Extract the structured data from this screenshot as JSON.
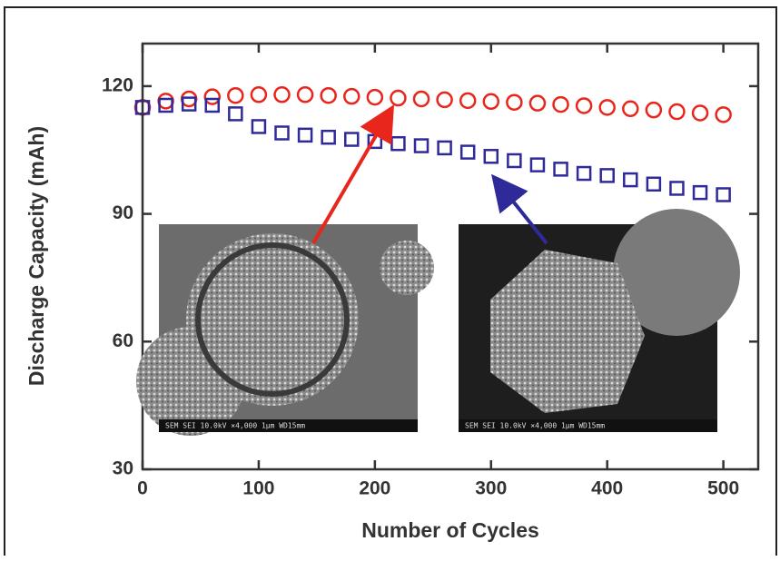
{
  "chart_data": {
    "type": "scatter",
    "xlabel": "Number of Cycles",
    "ylabel": "Discharge Capacity (mAh)",
    "x": [
      0,
      20,
      40,
      60,
      80,
      100,
      120,
      140,
      160,
      180,
      200,
      220,
      240,
      260,
      280,
      300,
      320,
      340,
      360,
      380,
      400,
      420,
      440,
      460,
      480,
      500
    ],
    "series": [
      {
        "color": "#e8261c",
        "marker": "circle",
        "values": [
          115,
          116.5,
          117,
          117.5,
          117.8,
          118,
          118,
          118,
          117.8,
          117.6,
          117.4,
          117.2,
          117,
          116.8,
          116.6,
          116.4,
          116.2,
          116,
          115.7,
          115.4,
          115,
          114.7,
          114.4,
          114,
          113.7,
          113.3
        ]
      },
      {
        "color": "#2e2a9a",
        "marker": "square",
        "values": [
          115,
          115.5,
          115.8,
          115.5,
          113.5,
          110.5,
          109,
          108.5,
          108,
          107.5,
          107,
          106.5,
          106,
          105.5,
          104.5,
          103.5,
          102.5,
          101.5,
          100.5,
          99.5,
          99,
          98,
          97,
          96,
          95,
          94.5
        ]
      }
    ],
    "xlim": [
      0,
      530
    ],
    "xticks": [
      0,
      100,
      200,
      300,
      400,
      500
    ],
    "ylim": [
      30,
      130
    ],
    "yticks": [
      30,
      60,
      90,
      120
    ]
  },
  "insets": [
    {
      "caption": "SEM SEI 10.0kV ×4,000 1μm WD15mm"
    },
    {
      "caption": "SEM SEI 10.0kV ×4,000 1μm WD15mm"
    }
  ]
}
